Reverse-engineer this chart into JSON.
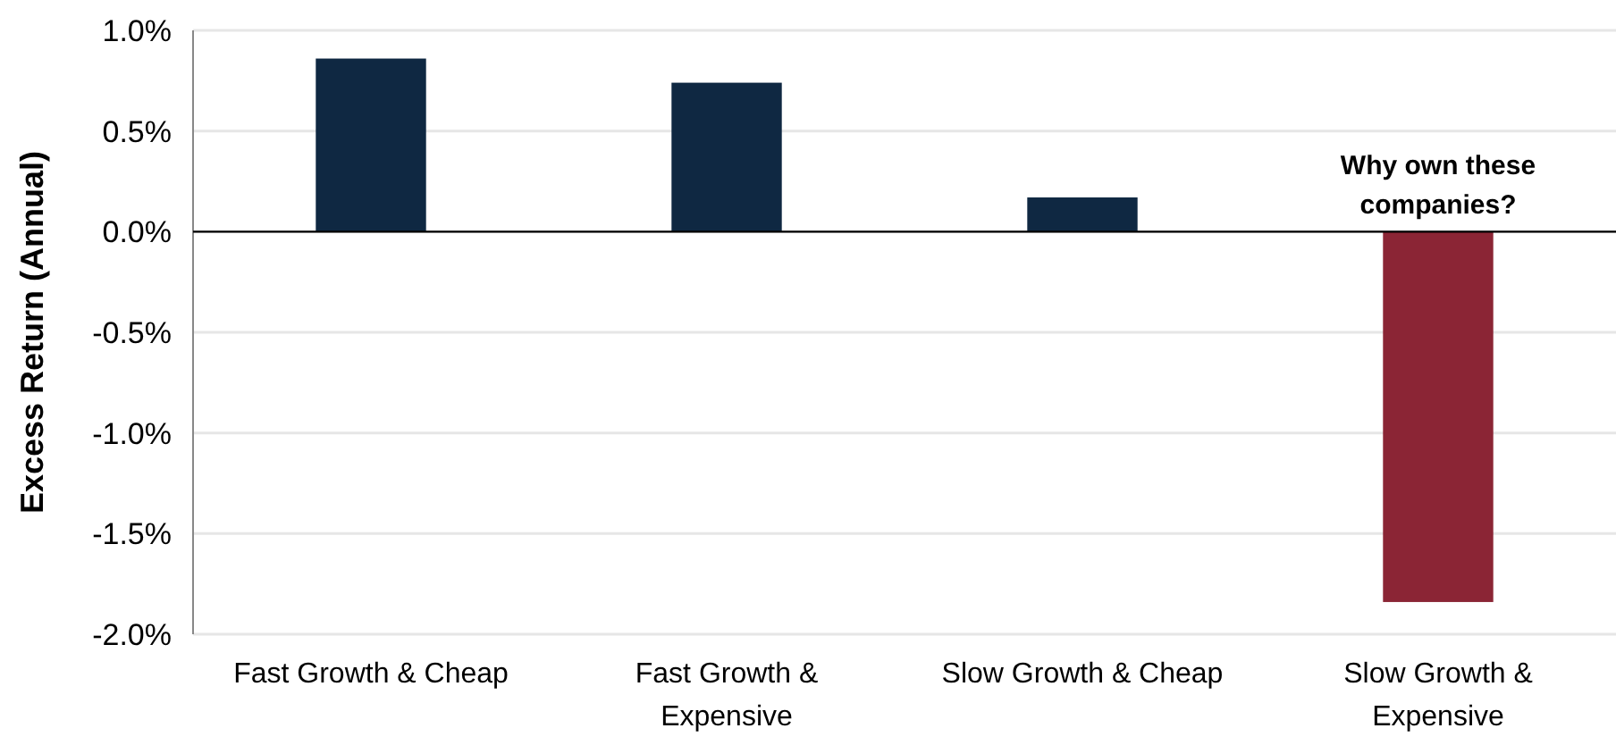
{
  "chart_data": {
    "type": "bar",
    "ylabel": "Excess Return (Annual)",
    "categories": [
      "Fast Growth & Cheap",
      "Fast Growth & Expensive",
      "Slow Growth & Cheap",
      "Slow Growth & Expensive"
    ],
    "values": [
      0.86,
      0.74,
      0.17,
      -1.84
    ],
    "colors": [
      "#0f2842",
      "#0f2842",
      "#0f2842",
      "#8b2535"
    ],
    "ylim": [
      -2,
      1
    ],
    "yticks": [
      {
        "value": 1,
        "label": "1.0%"
      },
      {
        "value": 0.5,
        "label": "0.5%"
      },
      {
        "value": 0,
        "label": "0.0%"
      },
      {
        "value": -0.5,
        "label": "-0.5%"
      },
      {
        "value": -1,
        "label": "-1.0%"
      },
      {
        "value": -1.5,
        "label": "-1.5%"
      },
      {
        "value": -2,
        "label": "-2.0%"
      }
    ],
    "grid": "y",
    "annotations": [
      {
        "text": "Why own these companies?",
        "x": "Slow Growth & Expensive",
        "y": 0
      }
    ]
  }
}
